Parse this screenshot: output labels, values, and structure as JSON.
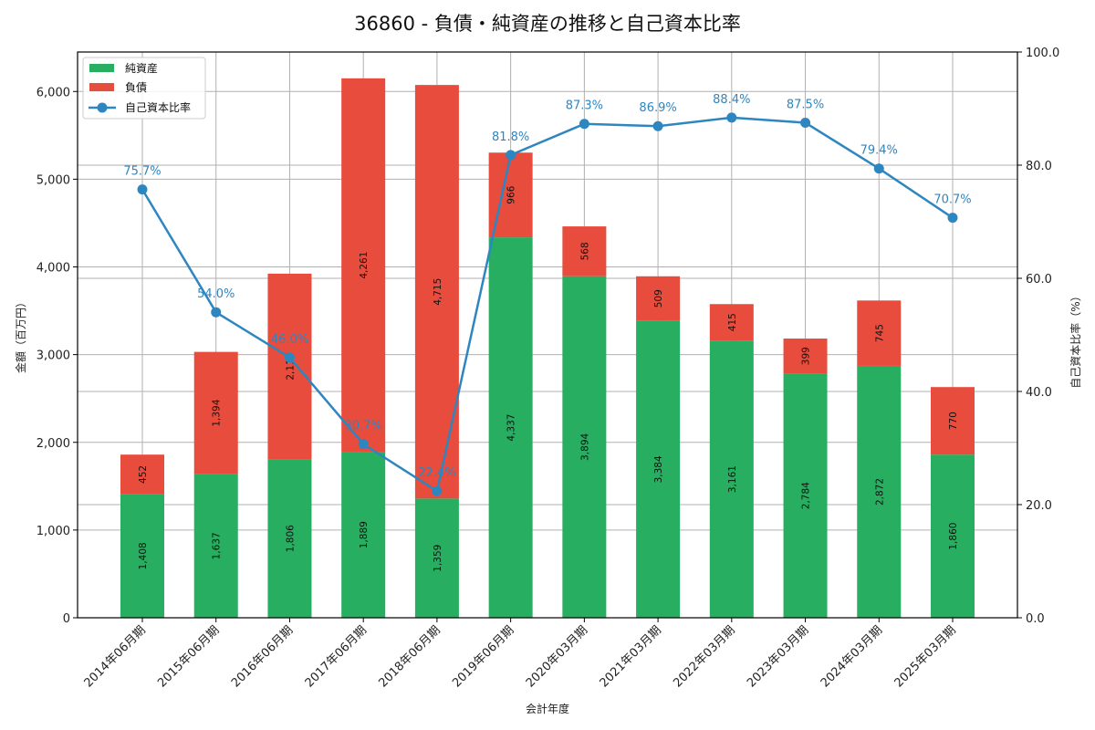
{
  "chart_data": {
    "type": "bar",
    "subtype": "stacked_bar_with_line_secondary_axis",
    "title": "36860 - 負債・純資産の推移と自己資本比率",
    "xlabel": "会計年度",
    "ylabel": "金額（百万円）",
    "ylabel_right": "自己資本比率（%）",
    "ylim": [
      0,
      6450
    ],
    "ylim_right": [
      0,
      100
    ],
    "yticks": [
      "0",
      "1,000",
      "2,000",
      "3,000",
      "4,000",
      "5,000",
      "6,000"
    ],
    "yticks_right": [
      "0.0",
      "20.0",
      "40.0",
      "60.0",
      "80.0",
      "100.0"
    ],
    "grid": true,
    "legend_position": "upper left",
    "categories": [
      "2014年06月期",
      "2015年06月期",
      "2016年06月期",
      "2017年06月期",
      "2018年06月期",
      "2019年06月期",
      "2020年03月期",
      "2021年03月期",
      "2022年03月期",
      "2023年03月期",
      "2024年03月期",
      "2025年03月期"
    ],
    "series": [
      {
        "name": "純資産",
        "type": "bar",
        "axis": "left",
        "color": "#27ae60",
        "values": [
          1408,
          1637,
          1806,
          1889,
          1359,
          4337,
          3894,
          3384,
          3161,
          2784,
          2872,
          1860
        ],
        "labels": [
          "1,408",
          "1,637",
          "1,806",
          "1,889",
          "1,359",
          "4,337",
          "3,894",
          "3,384",
          "3,161",
          "2,784",
          "2,872",
          "1,860"
        ]
      },
      {
        "name": "負債",
        "type": "bar",
        "axis": "left",
        "stacked_on": "純資産",
        "color": "#e74c3c",
        "values": [
          452,
          1394,
          2117,
          4261,
          4715,
          966,
          568,
          509,
          415,
          399,
          745,
          770
        ],
        "labels": [
          "452",
          "1,394",
          "2,117",
          "4,261",
          "4,715",
          "966",
          "568",
          "509",
          "415",
          "399",
          "745",
          "770"
        ]
      },
      {
        "name": "自己資本比率",
        "type": "line",
        "axis": "right",
        "color": "#2e86c1",
        "marker": "circle",
        "values": [
          75.7,
          54.0,
          46.0,
          30.7,
          22.4,
          81.8,
          87.3,
          86.9,
          88.4,
          87.5,
          79.4,
          70.7
        ],
        "labels": [
          "75.7%",
          "54.0%",
          "46.0%",
          "30.7%",
          "22.4%",
          "81.8%",
          "87.3%",
          "86.9%",
          "88.4%",
          "87.5%",
          "79.4%",
          "70.7%"
        ]
      }
    ]
  }
}
